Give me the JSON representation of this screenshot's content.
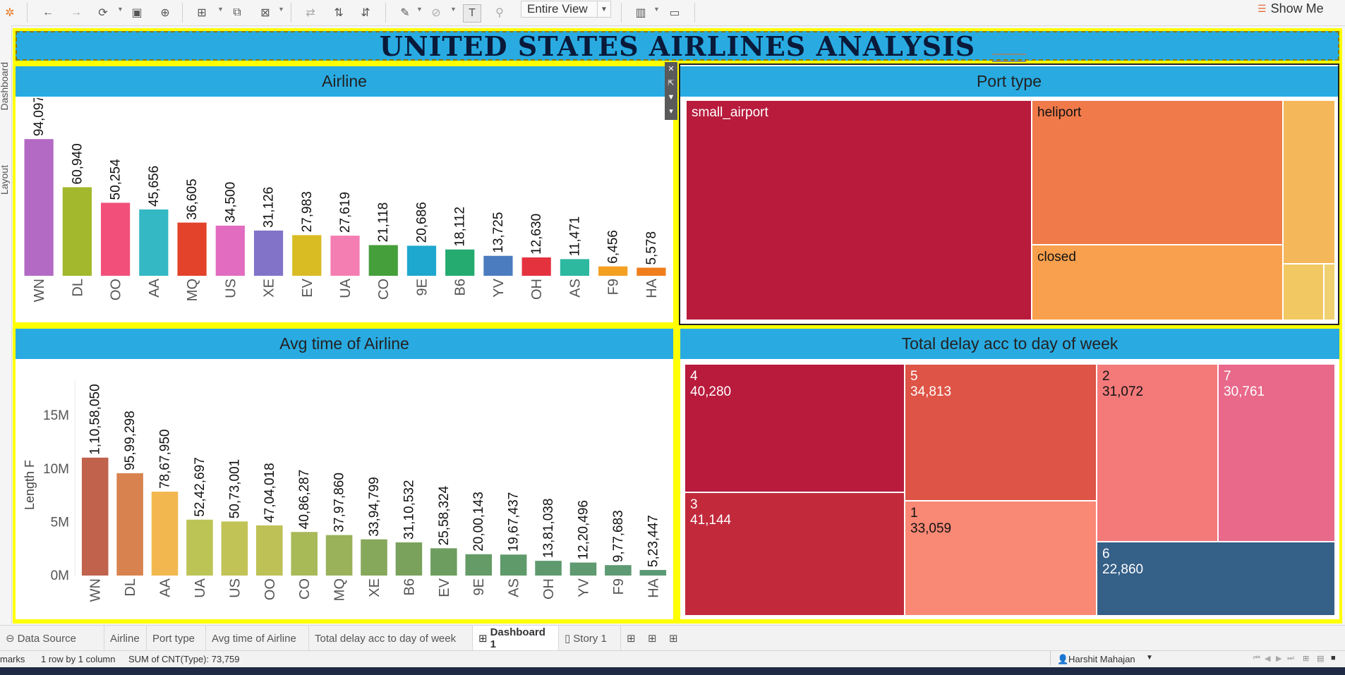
{
  "toolbar": {
    "view_select": "Entire View",
    "show_me": "Show Me"
  },
  "side_tabs": {
    "dashboard": "Dashboard",
    "layout": "Layout"
  },
  "dashboard_title": "UNITED STATES AIRLINES ANALYSIS",
  "colors": {
    "header_blue": "#29abe2",
    "border_yellow": "#ffff00"
  },
  "chart_data": [
    {
      "type": "bar",
      "title": "Airline",
      "categories": [
        "WN",
        "DL",
        "OO",
        "AA",
        "MQ",
        "US",
        "XE",
        "EV",
        "UA",
        "CO",
        "9E",
        "B6",
        "YV",
        "OH",
        "AS",
        "F9",
        "HA"
      ],
      "values": [
        94097,
        60940,
        50254,
        45656,
        36605,
        34500,
        31126,
        27983,
        27619,
        21118,
        20686,
        18112,
        13725,
        12630,
        11471,
        6456,
        5578
      ],
      "labels": [
        "94,097",
        "60,940",
        "50,254",
        "45,656",
        "36,605",
        "34,500",
        "31,126",
        "27,983",
        "27,619",
        "21,118",
        "20,686",
        "18,112",
        "13,725",
        "12,630",
        "11,471",
        "6,456",
        "5,578"
      ],
      "colors": [
        "#b36ac4",
        "#a3b82c",
        "#f2507a",
        "#33b8c4",
        "#e2432a",
        "#e26cc0",
        "#8272c8",
        "#d9bc23",
        "#f47eb2",
        "#459f3a",
        "#1ea8cf",
        "#25ab6f",
        "#4a7cbf",
        "#e5323f",
        "#2db8a0",
        "#f3a023",
        "#f07e1e"
      ],
      "ylim": [
        0,
        100000
      ]
    },
    {
      "type": "treemap",
      "title": "Port type",
      "items": [
        {
          "label": "small_airport",
          "color": "#b81b3c"
        },
        {
          "label": "heliport",
          "color": "#f07a4a"
        },
        {
          "label": "closed",
          "color": "#f8a04e"
        },
        {
          "label": "",
          "color": "#f4b85a"
        },
        {
          "label": "",
          "color": "#f2c862"
        },
        {
          "label": "",
          "color": "#f0d070"
        }
      ]
    },
    {
      "type": "bar",
      "title": "Avg time of Airline",
      "ylabel": "Length F",
      "yticks": [
        "15M",
        "10M",
        "5M",
        "0M"
      ],
      "ytick_values": [
        15000000,
        10000000,
        5000000,
        0
      ],
      "categories": [
        "WN",
        "DL",
        "AA",
        "UA",
        "US",
        "OO",
        "CO",
        "MQ",
        "XE",
        "B6",
        "EV",
        "9E",
        "AS",
        "OH",
        "YV",
        "F9",
        "HA"
      ],
      "values": [
        11058050,
        9599298,
        7867950,
        5242697,
        5073001,
        4704018,
        4086287,
        3797860,
        3394799,
        3110532,
        2558324,
        2000143,
        1967437,
        1381038,
        1220496,
        977683,
        523447
      ],
      "labels": [
        "1,10,58,050",
        "95,99,298",
        "78,67,950",
        "52,42,697",
        "50,73,001",
        "47,04,018",
        "40,86,287",
        "37,97,860",
        "33,94,799",
        "31,10,532",
        "25,58,324",
        "20,00,143",
        "19,67,437",
        "13,81,038",
        "12,20,496",
        "9,77,683",
        "5,23,447"
      ],
      "colors": [
        "#c0624c",
        "#d8834f",
        "#f2b84f",
        "#bcc456",
        "#c2c356",
        "#bdc156",
        "#a8b958",
        "#9ab25a",
        "#86a85b",
        "#7aa25d",
        "#6e9e5f",
        "#649b66",
        "#5f9a6a",
        "#5e9a6e",
        "#5f9a70",
        "#5e9a73",
        "#5a9a76"
      ],
      "ylim": [
        0,
        17000000
      ]
    },
    {
      "type": "treemap",
      "title": "Total delay acc to day of week",
      "items": [
        {
          "label": "4",
          "value": "40,280",
          "color": "#b81b3c"
        },
        {
          "label": "3",
          "value": "41,144",
          "color": "#c22a3c"
        },
        {
          "label": "5",
          "value": "34,813",
          "color": "#de5446"
        },
        {
          "label": "1",
          "value": "33,059",
          "color": "#f98875"
        },
        {
          "label": "2",
          "value": "31,072",
          "color": "#f47a7a"
        },
        {
          "label": "7",
          "value": "30,761",
          "color": "#e8698a"
        },
        {
          "label": "6",
          "value": "22,860",
          "color": "#356088"
        }
      ]
    }
  ],
  "tabs": [
    "Data Source",
    "Airline",
    "Port type",
    "Avg time of Airline",
    "Total delay acc to day of week",
    "Dashboard 1",
    "Story 1"
  ],
  "status": {
    "marks": "marks",
    "rows": "1 row by 1 column",
    "sum": "SUM of CNT(Type): 73,759",
    "user": "Harshit Mahajan"
  }
}
